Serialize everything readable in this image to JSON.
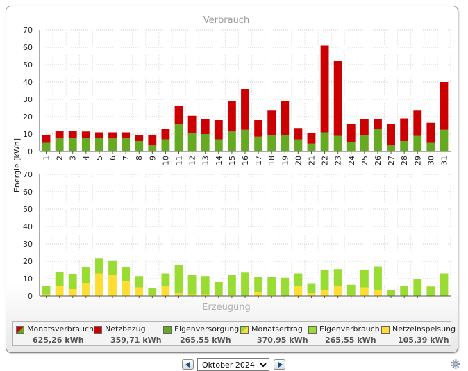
{
  "title_top": "Verbrauch",
  "title_bottom": "Erzeugung",
  "ylabel": "Energie [kWh]",
  "colors": {
    "netzbezug": "#cc0000",
    "eigenversorgung": "#66aa22",
    "eigenverbrauch": "#99dd33",
    "netzeinspeisung": "#ffdd33"
  },
  "chart_data": [
    {
      "type": "bar",
      "stacked": true,
      "title": "Verbrauch",
      "ylabel": "Energie [kWh]",
      "ylim": [
        0,
        70
      ],
      "yticks": [
        0,
        10,
        20,
        30,
        40,
        50,
        60,
        70
      ],
      "categories": [
        "1",
        "2",
        "3",
        "4",
        "5",
        "6",
        "7",
        "8",
        "9",
        "10",
        "11",
        "12",
        "13",
        "14",
        "15",
        "16",
        "17",
        "18",
        "19",
        "20",
        "21",
        "22",
        "23",
        "24",
        "25",
        "26",
        "27",
        "28",
        "29",
        "30",
        "31"
      ],
      "series": [
        {
          "name": "Eigenversorgung",
          "color": "#66aa22",
          "values": [
            5,
            7.5,
            8,
            8,
            8,
            7.5,
            8,
            6,
            3.5,
            7,
            16,
            10.5,
            10,
            7,
            11.5,
            12.5,
            8.5,
            9.5,
            9.5,
            7,
            4.5,
            11,
            9,
            5.5,
            9.5,
            13,
            3.5,
            6,
            9,
            5,
            12.5
          ]
        },
        {
          "name": "Netzbezug",
          "color": "#cc0000",
          "values": [
            4.5,
            4.5,
            4,
            3.5,
            3,
            3.5,
            3,
            3.5,
            6,
            6,
            10,
            10,
            8.5,
            11,
            17.5,
            23.5,
            9.5,
            14,
            19.5,
            6.5,
            6,
            50,
            43,
            10.5,
            9,
            5.5,
            12.5,
            13,
            14.5,
            11.5,
            27.5
          ]
        }
      ]
    },
    {
      "type": "bar",
      "stacked": true,
      "title": "Erzeugung",
      "ylim": [
        0,
        70
      ],
      "yticks": [
        0,
        10,
        20,
        30,
        40,
        50,
        60,
        70
      ],
      "categories": [
        "1",
        "2",
        "3",
        "4",
        "5",
        "6",
        "7",
        "8",
        "9",
        "10",
        "11",
        "12",
        "13",
        "14",
        "15",
        "16",
        "17",
        "18",
        "19",
        "20",
        "21",
        "22",
        "23",
        "24",
        "25",
        "26",
        "27",
        "28",
        "29",
        "30",
        "31"
      ],
      "series": [
        {
          "name": "Netzeinspeisung",
          "color": "#ffdd33",
          "values": [
            1,
            6,
            4,
            7.5,
            13,
            12,
            8.5,
            5,
            0.5,
            5.5,
            1.5,
            1,
            1,
            0.5,
            0.5,
            0,
            2,
            0.5,
            0,
            5.5,
            1.5,
            3.5,
            6,
            0.5,
            5,
            3.5,
            0,
            0,
            0,
            0,
            0
          ]
        },
        {
          "name": "Eigenverbrauch",
          "color": "#99dd33",
          "values": [
            5,
            8,
            8.5,
            9,
            8.5,
            8.5,
            8,
            6.5,
            4,
            7.5,
            16.5,
            11,
            10.5,
            7.5,
            11.5,
            13.5,
            9,
            10.5,
            10.5,
            7.5,
            5.5,
            11.5,
            9.5,
            6,
            10,
            13.5,
            3.5,
            6,
            10,
            5.5,
            13
          ]
        }
      ]
    }
  ],
  "legend": [
    {
      "name": "Monatsverbrauch",
      "value": "625,26 kWh",
      "swatch": "split-red-green"
    },
    {
      "name": "Netzbezug",
      "value": "359,71 kWh",
      "swatch": "red"
    },
    {
      "name": "Eigenversorgung",
      "value": "265,55 kWh",
      "swatch": "green"
    },
    {
      "name": "Monatsertrag",
      "value": "370,95 kWh",
      "swatch": "split-green-yellow"
    },
    {
      "name": "Eigenverbrauch",
      "value": "265,55 kWh",
      "swatch": "lightgreen"
    },
    {
      "name": "Netzeinspeisung",
      "value": "105,39 kWh",
      "swatch": "yellow"
    }
  ],
  "nav": {
    "prev_icon": "arrow-left-icon",
    "next_icon": "arrow-right-icon",
    "selected_month": "Oktober 2024",
    "settings_icon": "gear-icon"
  }
}
